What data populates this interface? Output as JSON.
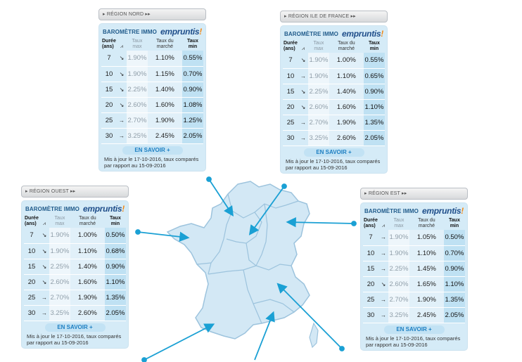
{
  "headers": {
    "duree": "Durée (ans)",
    "taux_max": "Taux max",
    "taux_marche": "Taux du marché",
    "taux_min": "Taux min"
  },
  "barometre_label": "BAROMÈTRE IMMO",
  "logo_text": "empruntis",
  "logo_accent": "!",
  "cta_label": "EN SAVOIR +",
  "update_note": "Mis à jour le 17-10-2016, taux comparés par rapport au 15-09-2016",
  "colors": {
    "map_fill": "#d3e8f5",
    "map_stroke": "#9cc3dd",
    "arrow": "#1aa0d4",
    "panel": "#d5ebf7"
  },
  "trend_icons": {
    "down": "↘",
    "stable": "→"
  },
  "regions": [
    {
      "id": "nord",
      "tab": "▸ RÉGION NORD ▸▸",
      "rows": [
        {
          "duree": "7",
          "trend": "↘",
          "max": "1.90%",
          "mkt": "1.10%",
          "min": "0.55%"
        },
        {
          "duree": "10",
          "trend": "↘",
          "max": "1.90%",
          "mkt": "1.15%",
          "min": "0.70%"
        },
        {
          "duree": "15",
          "trend": "↘",
          "max": "2.25%",
          "mkt": "1.40%",
          "min": "0.90%"
        },
        {
          "duree": "20",
          "trend": "↘",
          "max": "2.60%",
          "mkt": "1.60%",
          "min": "1.08%"
        },
        {
          "duree": "25",
          "trend": "→",
          "max": "2.70%",
          "mkt": "1.90%",
          "min": "1.25%"
        },
        {
          "duree": "30",
          "trend": "→",
          "max": "3.25%",
          "mkt": "2.45%",
          "min": "2.05%"
        }
      ]
    },
    {
      "id": "idf",
      "tab": "▸ RÉGION ILE DE FRANCE ▸▸",
      "rows": [
        {
          "duree": "7",
          "trend": "↘",
          "max": "1.90%",
          "mkt": "1.00%",
          "min": "0.55%"
        },
        {
          "duree": "10",
          "trend": "→",
          "max": "1.90%",
          "mkt": "1.10%",
          "min": "0.65%"
        },
        {
          "duree": "15",
          "trend": "↘",
          "max": "2.25%",
          "mkt": "1.40%",
          "min": "0.90%"
        },
        {
          "duree": "20",
          "trend": "↘",
          "max": "2.60%",
          "mkt": "1.60%",
          "min": "1.10%"
        },
        {
          "duree": "25",
          "trend": "→",
          "max": "2.70%",
          "mkt": "1.90%",
          "min": "1.35%"
        },
        {
          "duree": "30",
          "trend": "→",
          "max": "3.25%",
          "mkt": "2.60%",
          "min": "2.05%"
        }
      ]
    },
    {
      "id": "ouest",
      "tab": "▸ RÉGION OUEST ▸▸",
      "rows": [
        {
          "duree": "7",
          "trend": "↘",
          "max": "1.90%",
          "mkt": "1.00%",
          "min": "0.50%"
        },
        {
          "duree": "10",
          "trend": "↘",
          "max": "1.90%",
          "mkt": "1.10%",
          "min": "0.68%"
        },
        {
          "duree": "15",
          "trend": "↘",
          "max": "2.25%",
          "mkt": "1.40%",
          "min": "0.90%"
        },
        {
          "duree": "20",
          "trend": "↘",
          "max": "2.60%",
          "mkt": "1.60%",
          "min": "1.10%"
        },
        {
          "duree": "25",
          "trend": "→",
          "max": "2.70%",
          "mkt": "1.90%",
          "min": "1.35%"
        },
        {
          "duree": "30",
          "trend": "→",
          "max": "3.25%",
          "mkt": "2.60%",
          "min": "2.05%"
        }
      ]
    },
    {
      "id": "est",
      "tab": "▸ RÉGION EST ▸▸",
      "rows": [
        {
          "duree": "7",
          "trend": "→",
          "max": "1.90%",
          "mkt": "1.05%",
          "min": "0.50%"
        },
        {
          "duree": "10",
          "trend": "→",
          "max": "1.90%",
          "mkt": "1.10%",
          "min": "0.70%"
        },
        {
          "duree": "15",
          "trend": "→",
          "max": "2.25%",
          "mkt": "1.45%",
          "min": "0.90%"
        },
        {
          "duree": "20",
          "trend": "↘",
          "max": "2.60%",
          "mkt": "1.65%",
          "min": "1.10%"
        },
        {
          "duree": "25",
          "trend": "→",
          "max": "2.70%",
          "mkt": "1.90%",
          "min": "1.35%"
        },
        {
          "duree": "30",
          "trend": "→",
          "max": "3.25%",
          "mkt": "2.45%",
          "min": "2.05%"
        }
      ]
    }
  ]
}
